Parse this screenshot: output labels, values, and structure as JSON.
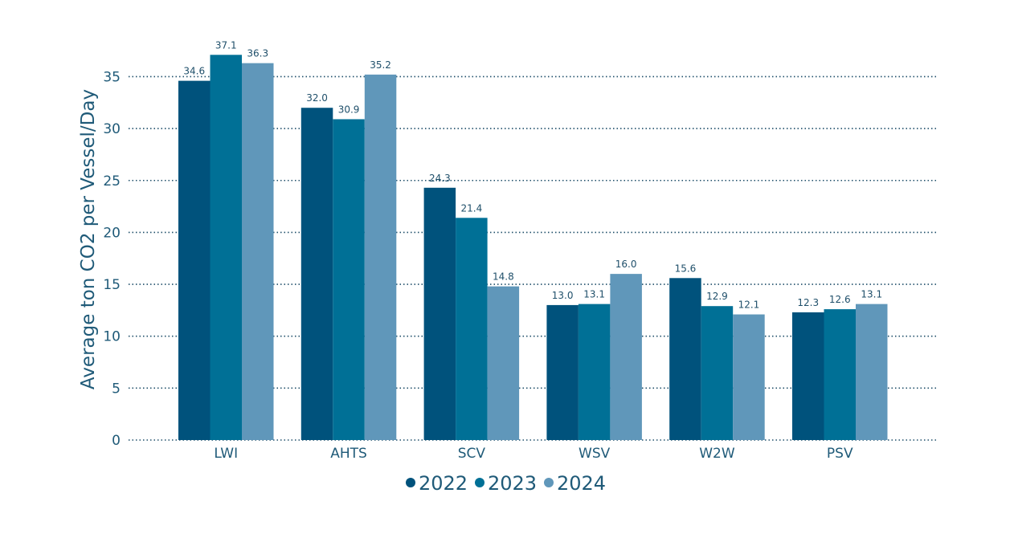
{
  "chart_data": {
    "type": "bar",
    "ylabel": "Average ton CO2 per Vessel/Day",
    "xlabel": "",
    "ylim": [
      0,
      37.5
    ],
    "yticks": [
      0,
      5,
      10,
      15,
      20,
      25,
      30,
      35
    ],
    "grid": true,
    "legend": "bottom-center",
    "categories": [
      "LWI",
      "AHTS",
      "SCV",
      "WSV",
      "W2W",
      "PSV"
    ],
    "series": [
      {
        "name": "2022",
        "color": "#00527c",
        "values": [
          34.6,
          32.0,
          24.3,
          13.0,
          15.6,
          12.3
        ]
      },
      {
        "name": "2023",
        "color": "#007096",
        "values": [
          37.1,
          30.9,
          21.4,
          13.1,
          12.9,
          12.6
        ]
      },
      {
        "name": "2024",
        "color": "#6097ba",
        "values": [
          36.3,
          35.2,
          14.8,
          16.0,
          12.1,
          13.1
        ]
      }
    ]
  }
}
